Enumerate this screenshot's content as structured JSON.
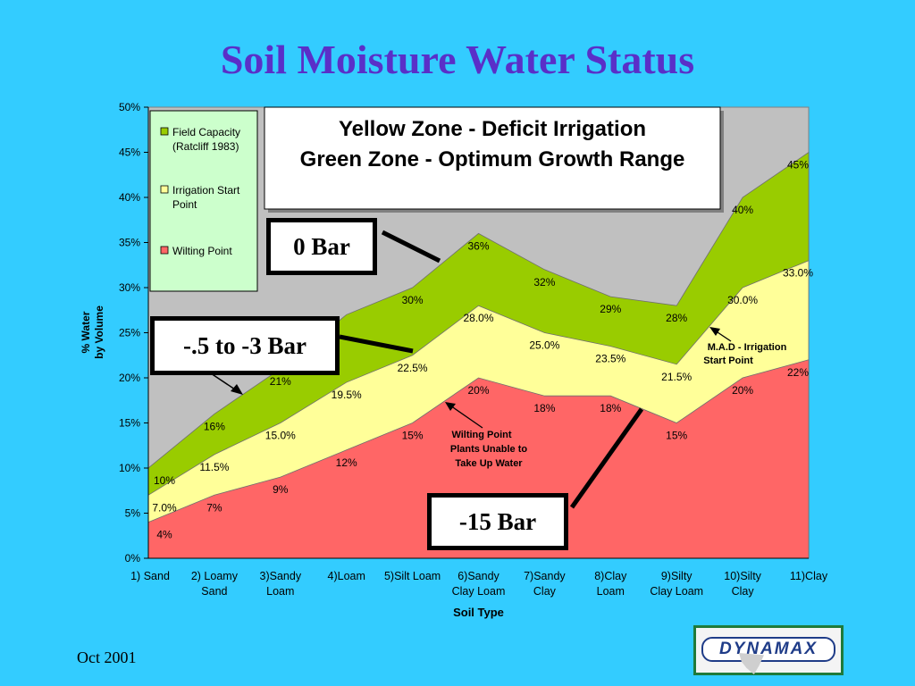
{
  "title": "Soil Moisture Water Status",
  "footer_date": "Oct 2001",
  "logo_text": "DYNAMAX",
  "colors": {
    "background": "#33ccff",
    "title": "#5a2fc8",
    "plot_bg": "#c0c0c0",
    "green": "#99cc00",
    "yellow": "#ffff99",
    "red": "#ff6666"
  },
  "chart_data": {
    "type": "area",
    "xlabel": "Soil Type",
    "ylabel": [
      "% Water",
      "by Volume"
    ],
    "ylim": [
      0,
      50
    ],
    "y_ticks": [
      "0%",
      "5%",
      "10%",
      "15%",
      "20%",
      "25%",
      "30%",
      "35%",
      "40%",
      "45%",
      "50%"
    ],
    "categories": [
      [
        "1) Sand"
      ],
      [
        "2) Loamy",
        "Sand"
      ],
      [
        "3)Sandy",
        "Loam"
      ],
      [
        "4)Loam"
      ],
      [
        "5)Silt Loam"
      ],
      [
        "6)Sandy",
        "Clay Loam"
      ],
      [
        "7)Sandy",
        "Clay"
      ],
      [
        "8)Clay",
        "Loam"
      ],
      [
        "9)Silty",
        "Clay Loam"
      ],
      [
        "10)Silty",
        "Clay"
      ],
      [
        "11)Clay"
      ]
    ],
    "series": [
      {
        "name": "Field Capacity (Ratcliff 1983)",
        "legend_lines": [
          "Field Capacity",
          "(Ratcliff 1983)"
        ],
        "color": "#99cc00",
        "values": [
          10,
          16,
          21,
          27,
          30,
          36,
          32,
          29,
          28,
          40,
          45
        ],
        "labels": [
          "10%",
          "16%",
          "21%",
          "",
          "30%",
          "36%",
          "32%",
          "29%",
          "28%",
          "40%",
          "45%"
        ]
      },
      {
        "name": "Irrigation Start Point",
        "legend_lines": [
          "Irrigation Start",
          "Point"
        ],
        "color": "#ffff99",
        "values": [
          7.0,
          11.5,
          15.0,
          19.5,
          22.5,
          28.0,
          25.0,
          23.5,
          21.5,
          30.0,
          33.0
        ],
        "labels": [
          "7.0%",
          "11.5%",
          "15.0%",
          "19.5%",
          "22.5%",
          "28.0%",
          "25.0%",
          "23.5%",
          "21.5%",
          "30.0%",
          "33.0%"
        ]
      },
      {
        "name": "Wilting Point",
        "legend_lines": [
          "Wilting Point"
        ],
        "color": "#ff6666",
        "values": [
          4,
          7,
          9,
          12,
          15,
          20,
          18,
          18,
          15,
          20,
          22
        ],
        "labels": [
          "4%",
          "7%",
          "9%",
          "12%",
          "15%",
          "20%",
          "18%",
          "18%",
          "15%",
          "20%",
          "22%"
        ]
      }
    ],
    "zone_box": [
      "Yellow Zone - Deficit Irrigation",
      "Green Zone - Optimum Growth Range"
    ],
    "callouts": {
      "zero_bar": "0 Bar",
      "mid_bar": "-.5 to -3 Bar",
      "fifteen_bar": "-15 Bar",
      "mad": [
        "M.A.D - Irrigation",
        "Start Point"
      ],
      "wilting": [
        "Wilting Point",
        "Plants Unable to",
        "Take Up Water"
      ]
    }
  }
}
